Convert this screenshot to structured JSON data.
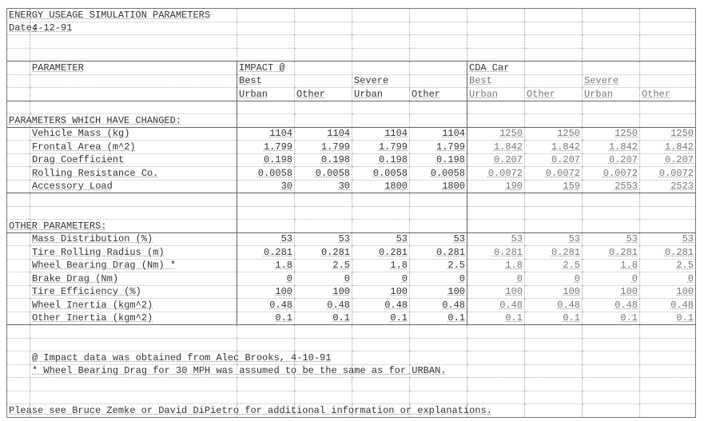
{
  "title": "ENERGY USEAGE SIMULATION PARAMETERS",
  "date_label": "Date:",
  "date_value": "4-12-91",
  "header": {
    "parameter_label": "PARAMETER",
    "group1": "IMPACT @",
    "group2": "CDA Car",
    "row2": [
      "Best",
      "",
      "Severe",
      "",
      "Best",
      "",
      "Severe",
      ""
    ],
    "row3": [
      "Urban",
      "Other",
      "Urban",
      "Other",
      "Urban",
      "Other",
      "Urban",
      "Other"
    ]
  },
  "changed_section": {
    "heading": "PARAMETERS WHICH HAVE CHANGED:",
    "rows": [
      {
        "label": "Vehicle Mass (kg)",
        "values": [
          "1104",
          "1104",
          "1104",
          "1104",
          "1250",
          "1250",
          "1250",
          "1250"
        ]
      },
      {
        "label": "Frontal Area (m^2)",
        "values": [
          "1.799",
          "1.799",
          "1.799",
          "1.799",
          "1.842",
          "1.842",
          "1.842",
          "1.842"
        ]
      },
      {
        "label": "Drag Coefficient",
        "values": [
          "0.198",
          "0.198",
          "0.198",
          "0.198",
          "0.207",
          "0.207",
          "0.207",
          "0.207"
        ]
      },
      {
        "label": "Rolling Resistance Co.",
        "values": [
          "0.0058",
          "0.0058",
          "0.0058",
          "0.0058",
          "0.0072",
          "0.0072",
          "0.0072",
          "0.0072"
        ]
      },
      {
        "label": "Accessory Load",
        "values": [
          "30",
          "30",
          "1800",
          "1800",
          "190",
          "159",
          "2553",
          "2523"
        ]
      }
    ]
  },
  "other_section": {
    "heading": "OTHER PARAMETERS:",
    "rows": [
      {
        "label": "Mass Distribution (%)",
        "values": [
          "53",
          "53",
          "53",
          "53",
          "53",
          "53",
          "53",
          "53"
        ]
      },
      {
        "label": "Tire Rolling Radius (m)",
        "values": [
          "0.281",
          "0.281",
          "0.281",
          "0.281",
          "0.281",
          "0.281",
          "0.281",
          "0.281"
        ]
      },
      {
        "label": "Wheel Bearing Drag (Nm) *",
        "values": [
          "1.8",
          "2.5",
          "1.8",
          "2.5",
          "1.8",
          "2.5",
          "1.8",
          "2.5"
        ]
      },
      {
        "label": "Brake Drag (Nm)",
        "values": [
          "0",
          "0",
          "0",
          "0",
          "0",
          "0",
          "0",
          "0"
        ]
      },
      {
        "label": "Tire Efficiency (%)",
        "values": [
          "100",
          "100",
          "100",
          "100",
          "100",
          "100",
          "100",
          "100"
        ]
      },
      {
        "label": "Wheel Inertia (kgm^2)",
        "values": [
          "0.48",
          "0.48",
          "0.48",
          "0.48",
          "0.48",
          "0.48",
          "0.48",
          "0.48"
        ]
      },
      {
        "label": "Other Inertia (kgm^2)",
        "values": [
          "0.1",
          "0.1",
          "0.1",
          "0.1",
          "0.1",
          "0.1",
          "0.1",
          "0.1"
        ]
      }
    ]
  },
  "footnotes": [
    "@ Impact data was obtained from Alec Brooks, 4-10-91",
    "*  Wheel Bearing Drag for 30 MPH was assumed to be the same as for URBAN."
  ],
  "closing_note": "Please see Bruce Zemke or David DiPietro for additional information or explanations."
}
